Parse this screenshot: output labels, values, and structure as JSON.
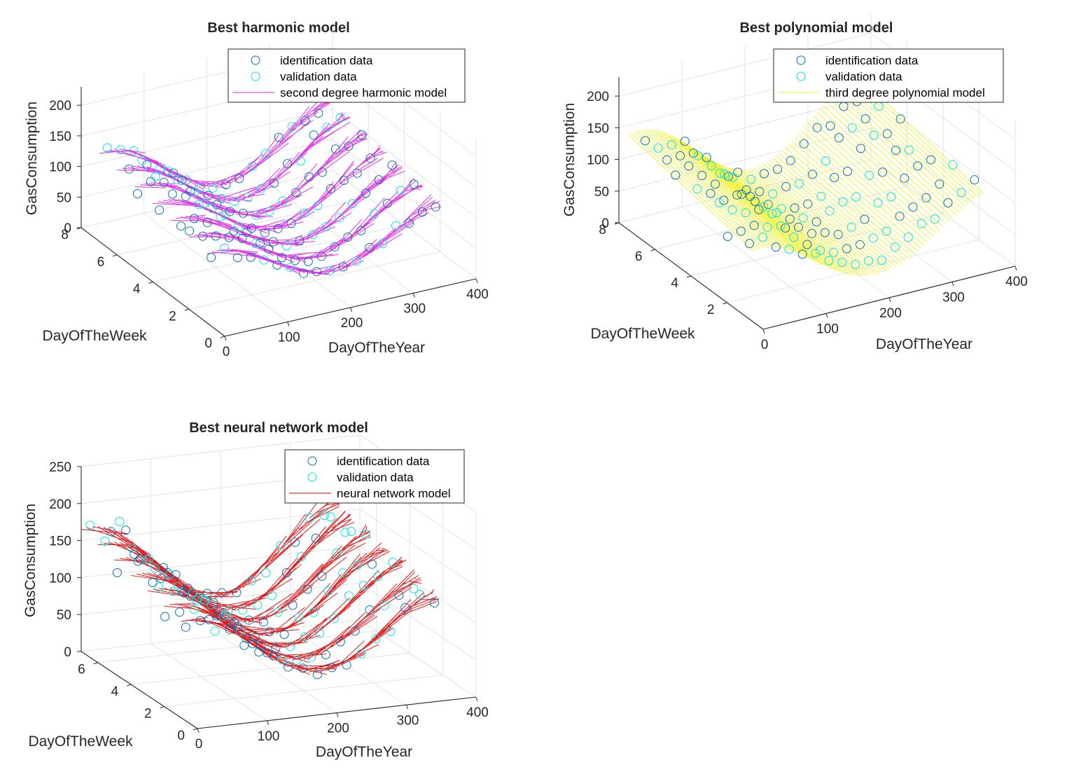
{
  "chart_data": [
    {
      "type": "scatter3d",
      "title": "Best harmonic model",
      "xlabel": "DayOfTheYear",
      "ylabel": "DayOfTheWeek",
      "zlabel": "GasConsumption",
      "xticks": [
        "0",
        "100",
        "200",
        "300",
        "400"
      ],
      "yticks": [
        "0",
        "2",
        "4",
        "6",
        "8"
      ],
      "zticks": [
        "0",
        "50",
        "100",
        "150",
        "200"
      ],
      "xlim": [
        0,
        400
      ],
      "ylim": [
        0,
        8
      ],
      "zlim": [
        0,
        230
      ],
      "grid": true,
      "legend_position": "top-right",
      "colors": {
        "identification": "#0072BD",
        "validation": "#00E5EE",
        "model": "#E020E0"
      },
      "series": [
        {
          "name": "identification data",
          "kind": "markers"
        },
        {
          "name": "validation data",
          "kind": "markers"
        },
        {
          "name": "second degree harmonic model",
          "kind": "lines"
        }
      ]
    },
    {
      "type": "scatter3d",
      "title": "Best polynomial model",
      "xlabel": "DayOfTheYear",
      "ylabel": "DayOfTheWeek",
      "zlabel": "GasConsumption",
      "xticks": [
        "0",
        "100",
        "200",
        "300",
        "400"
      ],
      "yticks": [
        "2",
        "4",
        "6",
        "8"
      ],
      "zticks": [
        "0",
        "50",
        "100",
        "150",
        "200"
      ],
      "xlim": [
        0,
        400
      ],
      "ylim": [
        0,
        8
      ],
      "zlim": [
        0,
        230
      ],
      "grid": true,
      "legend_position": "top-right",
      "colors": {
        "identification": "#0072BD",
        "validation": "#00E5EE",
        "model": "#F0F020"
      },
      "series": [
        {
          "name": "identification data",
          "kind": "markers"
        },
        {
          "name": "validation data",
          "kind": "markers"
        },
        {
          "name": "third degree polynomial model",
          "kind": "lines"
        }
      ]
    },
    {
      "type": "scatter3d",
      "title": "Best neural network model",
      "xlabel": "DayOfTheYear",
      "ylabel": "DayOfTheWeek",
      "zlabel": "GasConsumption",
      "xticks": [
        "0",
        "100",
        "200",
        "300",
        "400"
      ],
      "yticks": [
        "0",
        "2",
        "4",
        "6"
      ],
      "zticks": [
        "0",
        "50",
        "100",
        "150",
        "200",
        "250"
      ],
      "xlim": [
        0,
        400
      ],
      "ylim": [
        0,
        7
      ],
      "zlim": [
        0,
        250
      ],
      "grid": true,
      "legend_position": "top-right",
      "colors": {
        "identification": "#0072BD",
        "validation": "#00E5EE",
        "model": "#E00000"
      },
      "series": [
        {
          "name": "identification data",
          "kind": "markers"
        },
        {
          "name": "validation data",
          "kind": "markers"
        },
        {
          "name": "neural network model",
          "kind": "lines"
        }
      ]
    }
  ]
}
